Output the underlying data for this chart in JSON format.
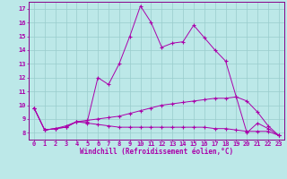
{
  "xlabel": "Windchill (Refroidissement éolien,°C)",
  "x": [
    0,
    1,
    2,
    3,
    4,
    5,
    6,
    7,
    8,
    9,
    10,
    11,
    12,
    13,
    14,
    15,
    16,
    17,
    18,
    19,
    20,
    21,
    22,
    23
  ],
  "line1": [
    9.8,
    8.2,
    8.3,
    8.4,
    8.8,
    8.8,
    12.0,
    11.5,
    13.0,
    15.0,
    17.2,
    16.0,
    14.2,
    14.5,
    14.6,
    15.8,
    14.9,
    14.0,
    13.2,
    10.6,
    8.0,
    8.7,
    8.3,
    7.8
  ],
  "line2": [
    9.8,
    8.2,
    8.3,
    8.4,
    8.8,
    8.7,
    8.6,
    8.5,
    8.4,
    8.4,
    8.4,
    8.4,
    8.4,
    8.4,
    8.4,
    8.4,
    8.4,
    8.3,
    8.3,
    8.2,
    8.1,
    8.1,
    8.1,
    7.8
  ],
  "line3": [
    9.8,
    8.2,
    8.3,
    8.5,
    8.8,
    8.9,
    9.0,
    9.1,
    9.2,
    9.4,
    9.6,
    9.8,
    10.0,
    10.1,
    10.2,
    10.3,
    10.4,
    10.5,
    10.5,
    10.6,
    10.3,
    9.5,
    8.5,
    7.8
  ],
  "line_color": "#aa00aa",
  "bg_color": "#bce8e8",
  "grid_color": "#99cccc",
  "spine_color": "#880088",
  "ylim": [
    7.5,
    17.5
  ],
  "yticks": [
    8,
    9,
    10,
    11,
    12,
    13,
    14,
    15,
    16,
    17
  ],
  "xticks": [
    0,
    1,
    2,
    3,
    4,
    5,
    6,
    7,
    8,
    9,
    10,
    11,
    12,
    13,
    14,
    15,
    16,
    17,
    18,
    19,
    20,
    21,
    22,
    23
  ],
  "tick_fontsize": 5,
  "xlabel_fontsize": 5.5
}
